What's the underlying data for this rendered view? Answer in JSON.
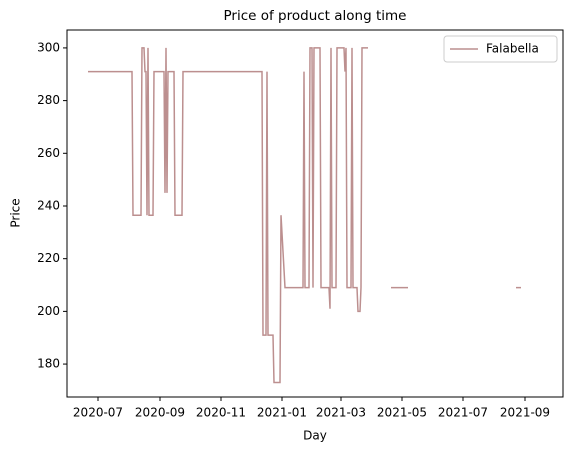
{
  "chart_data": {
    "type": "line",
    "title": "Price of product along time",
    "x_label": "Day",
    "y_label": "Price",
    "legend": "upper right",
    "grid": false,
    "x": [
      "2020-06-21",
      "2020-08-04",
      "2020-08-05",
      "2020-08-13",
      "2020-08-14",
      "2020-08-16",
      "2020-08-17",
      "2020-08-18",
      "2020-08-19",
      "2020-08-20",
      "2020-08-21",
      "2020-08-25",
      "2020-08-26",
      "2020-09-05",
      "2020-09-06",
      "2020-09-07",
      "2020-09-08",
      "2020-09-09",
      "2020-09-15",
      "2020-09-16",
      "2020-09-23",
      "2020-09-24",
      "2020-12-12",
      "2020-12-13",
      "2020-12-16",
      "2020-12-17",
      "2020-12-18",
      "2020-12-23",
      "2020-12-24",
      "2020-12-30",
      "2020-12-31",
      "2021-01-04",
      "2021-01-22",
      "2021-01-23",
      "2021-01-24",
      "2021-01-28",
      "2021-01-29",
      "2021-01-31",
      "2021-02-01",
      "2021-02-02",
      "2021-02-08",
      "2021-02-09",
      "2021-02-17",
      "2021-02-18",
      "2021-02-19",
      "2021-02-20",
      "2021-02-24",
      "2021-02-25",
      "2021-03-04",
      "2021-03-05",
      "2021-03-06",
      "2021-03-07",
      "2021-03-11",
      "2021-03-12",
      "2021-03-13",
      "2021-03-17",
      "2021-03-18",
      "2021-03-20",
      "2021-03-21",
      "2021-03-22",
      "2021-03-28",
      "2021-04-10",
      "2021-04-20",
      "2021-05-07",
      "2021-06-01",
      "2021-08-23",
      "2021-08-28"
    ],
    "series": [
      {
        "name": "Falabella",
        "color": "#bc8f8f",
        "values": [
          291,
          291,
          236.5,
          236.5,
          300,
          300,
          291,
          291,
          236.5,
          300,
          236.5,
          236.5,
          291,
          291,
          245,
          300,
          245,
          291,
          291,
          236.5,
          236.5,
          291,
          291,
          191,
          191,
          291,
          191,
          191,
          173,
          173,
          236.5,
          209,
          209,
          291,
          209,
          209,
          300,
          300,
          209,
          300,
          300,
          209,
          209,
          201,
          300,
          209,
          209,
          300,
          300,
          291,
          300,
          209,
          209,
          300,
          209,
          209,
          200,
          200,
          209,
          300,
          300,
          null,
          209,
          209,
          null,
          209,
          209
        ]
      }
    ],
    "xlim": [
      "2020-05-31",
      "2021-10-09"
    ],
    "xticks": [
      "2020-07",
      "2020-09",
      "2020-11",
      "2021-01",
      "2021-03",
      "2021-05",
      "2021-07",
      "2021-09"
    ],
    "ylim": [
      167.5,
      306.8
    ],
    "yticks": [
      180,
      200,
      220,
      240,
      260,
      280,
      300
    ]
  }
}
